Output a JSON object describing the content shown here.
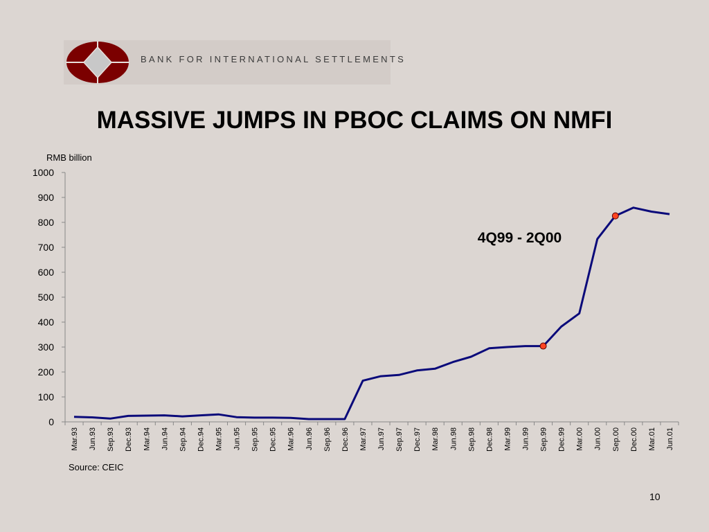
{
  "header": {
    "org_name": "BANK FOR INTERNATIONAL SETTLEMENTS",
    "title": "MASSIVE JUMPS IN PBOC CLAIMS ON NMFI"
  },
  "footer": {
    "source": "Source: CEIC",
    "page_number": "10"
  },
  "colors": {
    "background": "#dcd6d2",
    "line": "#0a0a7a",
    "marker": "#ff4422",
    "logo_red": "#7b0000",
    "logo_diamond": "#c8c8c8"
  },
  "chart_data": {
    "type": "line",
    "title": "",
    "ylabel": "RMB billion",
    "xlabel": "",
    "ylim": [
      0,
      1000
    ],
    "yticks": [
      0,
      100,
      200,
      300,
      400,
      500,
      600,
      700,
      800,
      900,
      1000
    ],
    "grid": false,
    "categories": [
      "Mar.93",
      "Jun.93",
      "Sep.93",
      "Dec.93",
      "Mar.94",
      "Jun.94",
      "Sep.94",
      "Dec.94",
      "Mar.95",
      "Jun.95",
      "Sep.95",
      "Dec.95",
      "Mar.96",
      "Jun.96",
      "Sep.96",
      "Dec.96",
      "Mar.97",
      "Jun.97",
      "Sep.97",
      "Dec.97",
      "Mar.98",
      "Jun.98",
      "Sep.98",
      "Dec.98",
      "Mar.99",
      "Jun.99",
      "Sep.99",
      "Dec.99",
      "Mar.00",
      "Jun.00",
      "Sep.00",
      "Dec.00",
      "Mar.01",
      "Jun.01"
    ],
    "series": [
      {
        "values": [
          20,
          18,
          13,
          24,
          25,
          26,
          22,
          26,
          30,
          19,
          17,
          17,
          16,
          11,
          11,
          11,
          165,
          183,
          188,
          206,
          213,
          240,
          261,
          295,
          300,
          304,
          304,
          382,
          435,
          733,
          826,
          859,
          843,
          833
        ]
      }
    ],
    "markers": [
      {
        "category": "Sep.99",
        "value": 304
      },
      {
        "category": "Sep.00",
        "value": 826
      }
    ],
    "annotations": [
      {
        "text": "4Q99 - 2Q00",
        "category": "Jun.99",
        "value": 720
      }
    ]
  }
}
